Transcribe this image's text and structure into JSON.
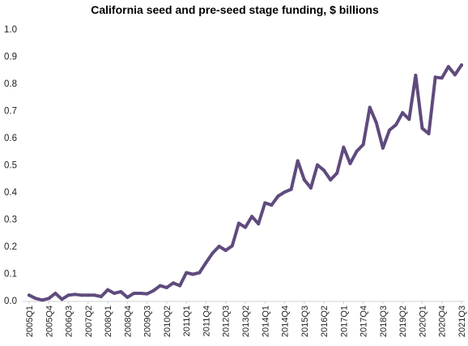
{
  "chart_data": {
    "type": "line",
    "title": "California seed and pre-seed stage funding, $ billions",
    "xlabel": "",
    "ylabel": "",
    "ylim": [
      0,
      1.0
    ],
    "yticks": [
      "0.0",
      "0.1",
      "0.2",
      "0.3",
      "0.4",
      "0.5",
      "0.6",
      "0.7",
      "0.8",
      "0.9",
      "1.0"
    ],
    "grid": false,
    "legend": "none",
    "line_color": "#5f4b7d",
    "x": [
      "2005Q1",
      "2005Q2",
      "2005Q3",
      "2005Q4",
      "2006Q1",
      "2006Q2",
      "2006Q3",
      "2006Q4",
      "2007Q1",
      "2007Q2",
      "2007Q3",
      "2007Q4",
      "2008Q1",
      "2008Q2",
      "2008Q3",
      "2008Q4",
      "2009Q1",
      "2009Q2",
      "2009Q3",
      "2009Q4",
      "2010Q1",
      "2010Q2",
      "2010Q3",
      "2010Q4",
      "2011Q1",
      "2011Q2",
      "2011Q3",
      "2011Q4",
      "2012Q1",
      "2012Q2",
      "2012Q3",
      "2012Q4",
      "2013Q1",
      "2013Q2",
      "2013Q3",
      "2013Q4",
      "2014Q1",
      "2014Q2",
      "2014Q3",
      "2014Q4",
      "2015Q1",
      "2015Q2",
      "2015Q3",
      "2015Q4",
      "2016Q1",
      "2016Q2",
      "2016Q3",
      "2016Q4",
      "2017Q1",
      "2017Q2",
      "2017Q3",
      "2017Q4",
      "2018Q1",
      "2018Q2",
      "2018Q3",
      "2018Q4",
      "2019Q1",
      "2019Q2",
      "2019Q3",
      "2019Q4",
      "2020Q1",
      "2020Q2",
      "2020Q3",
      "2020Q4",
      "2021Q1",
      "2021Q2",
      "2021Q3"
    ],
    "xtick_labels": [
      "2005Q1",
      "2005Q4",
      "2006Q3",
      "2007Q2",
      "2008Q1",
      "2008Q4",
      "2009Q3",
      "2010Q2",
      "2011Q1",
      "2011Q4",
      "2012Q3",
      "2013Q2",
      "2014Q1",
      "2014Q4",
      "2015Q3",
      "2016Q2",
      "2017Q1",
      "2017Q4",
      "2018Q3",
      "2019Q2",
      "2020Q1",
      "2020Q4",
      "2021Q3"
    ],
    "series": [
      {
        "values": [
          0.02,
          0.008,
          0.002,
          0.008,
          0.027,
          0.005,
          0.02,
          0.023,
          0.02,
          0.02,
          0.02,
          0.015,
          0.04,
          0.027,
          0.033,
          0.012,
          0.027,
          0.027,
          0.025,
          0.037,
          0.055,
          0.048,
          0.065,
          0.055,
          0.103,
          0.097,
          0.103,
          0.14,
          0.175,
          0.2,
          0.185,
          0.202,
          0.285,
          0.27,
          0.31,
          0.283,
          0.36,
          0.352,
          0.385,
          0.4,
          0.41,
          0.515,
          0.445,
          0.415,
          0.5,
          0.48,
          0.445,
          0.47,
          0.565,
          0.505,
          0.55,
          0.575,
          0.712,
          0.655,
          0.562,
          0.628,
          0.648,
          0.692,
          0.668,
          0.83,
          0.635,
          0.615,
          0.823,
          0.82,
          0.862,
          0.832,
          0.868
        ]
      }
    ]
  }
}
